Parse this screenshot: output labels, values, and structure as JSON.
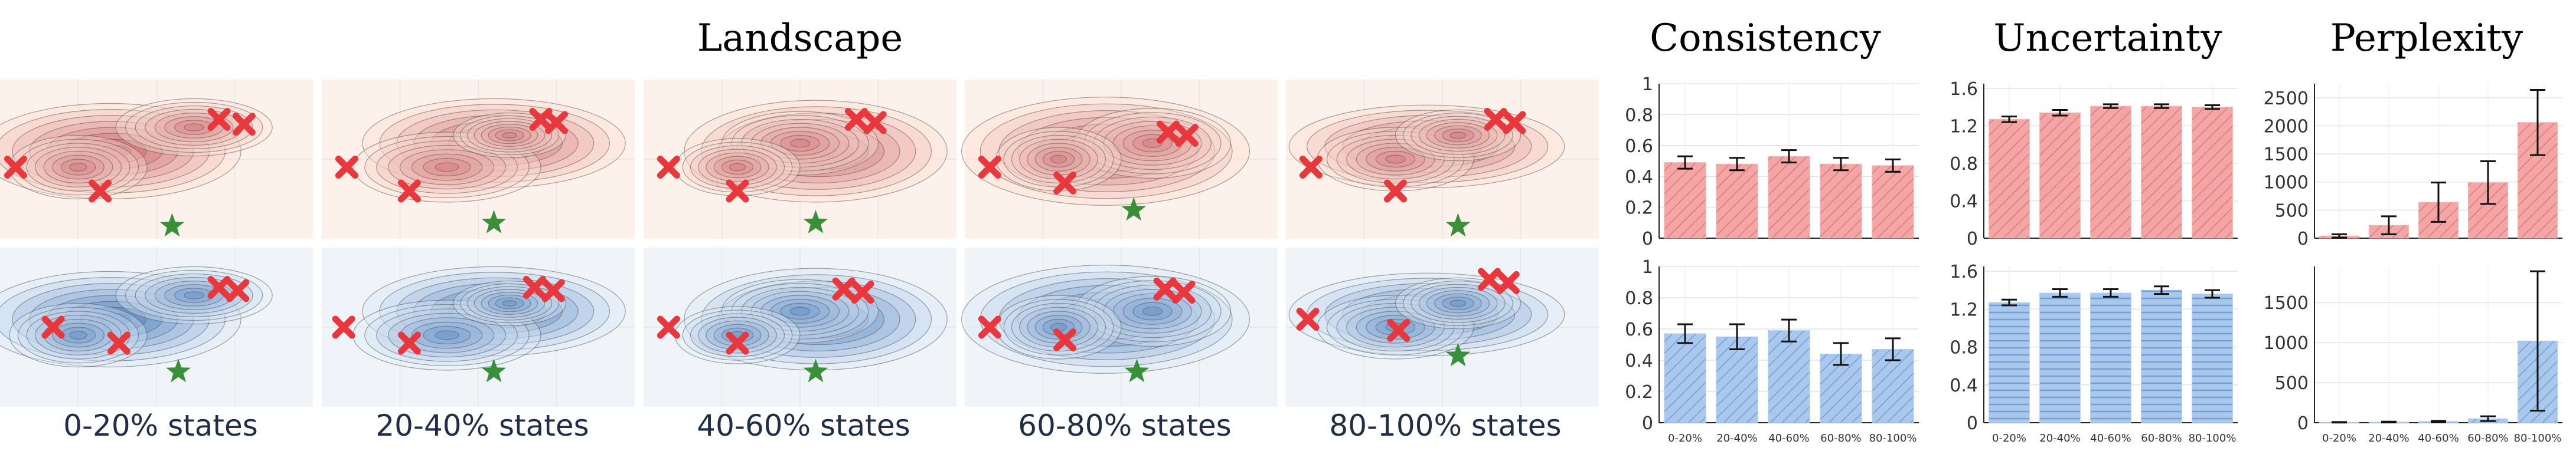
{
  "titles": {
    "landscape": "Landscape",
    "consistency": "Consistency",
    "uncertainty": "Uncertainty",
    "perplexity": "Perplexity"
  },
  "states": [
    "0-20% states",
    "20-40% states",
    "40-60% states",
    "60-80% states",
    "80-100% states"
  ],
  "colors": {
    "red_bg": "#fdf1ec",
    "blue_bg": "#f0f4f9",
    "red_bar": "#f4a6a6",
    "red_hatch": "#e07676",
    "blue_bar": "#a9c8ec",
    "blue_hatch": "#6f9fd6",
    "marker_x": "#e8383d",
    "marker_star": "#3a8f3a"
  },
  "chart_data": [
    {
      "id": "consistency-top",
      "type": "bar",
      "title": "Consistency",
      "color": "red",
      "categories": [
        "0-20%",
        "20-40%",
        "40-60%",
        "60-80%",
        "80-100%"
      ],
      "values": [
        0.49,
        0.48,
        0.53,
        0.48,
        0.47
      ],
      "errors": [
        0.04,
        0.04,
        0.04,
        0.04,
        0.04
      ],
      "ylim": [
        0,
        1
      ],
      "yticks": [
        0,
        0.2,
        0.4,
        0.6,
        0.8,
        1
      ],
      "ytick_labels": [
        "0",
        "0.2",
        "0.4",
        "0.6",
        "0.8",
        "1"
      ],
      "show_xticks": false
    },
    {
      "id": "uncertainty-top",
      "type": "bar",
      "title": "Uncertainty",
      "color": "red",
      "categories": [
        "0-20%",
        "20-40%",
        "40-60%",
        "60-80%",
        "80-100%"
      ],
      "values": [
        1.27,
        1.34,
        1.41,
        1.41,
        1.4
      ],
      "errors": [
        0.03,
        0.03,
        0.02,
        0.02,
        0.02
      ],
      "ylim": [
        0,
        1.65
      ],
      "yticks": [
        0,
        0.4,
        0.8,
        1.2,
        1.6
      ],
      "ytick_labels": [
        "0",
        "0.4",
        "0.8",
        "1.2",
        "1.6"
      ],
      "show_xticks": false
    },
    {
      "id": "perplexity-top",
      "type": "bar",
      "title": "Perplexity",
      "color": "red",
      "categories": [
        "0-20%",
        "20-40%",
        "40-60%",
        "60-80%",
        "80-100%"
      ],
      "values": [
        40,
        230,
        640,
        990,
        2060
      ],
      "errors": [
        30,
        160,
        350,
        380,
        580
      ],
      "ylim": [
        0,
        2750
      ],
      "yticks": [
        0,
        500,
        1000,
        1500,
        2000,
        2500
      ],
      "ytick_labels": [
        "0",
        "500",
        "1000",
        "1500",
        "2000",
        "2500"
      ],
      "show_xticks": false
    },
    {
      "id": "consistency-bottom",
      "type": "bar",
      "title": "",
      "color": "blue",
      "categories": [
        "0-20%",
        "20-40%",
        "40-60%",
        "60-80%",
        "80-100%"
      ],
      "values": [
        0.57,
        0.55,
        0.59,
        0.44,
        0.47
      ],
      "errors": [
        0.06,
        0.08,
        0.07,
        0.07,
        0.07
      ],
      "ylim": [
        0,
        1
      ],
      "yticks": [
        0,
        0.2,
        0.4,
        0.6,
        0.8,
        1
      ],
      "ytick_labels": [
        "0",
        "0.2",
        "0.4",
        "0.6",
        "0.8",
        "1"
      ],
      "show_xticks": true
    },
    {
      "id": "uncertainty-bottom",
      "type": "bar",
      "title": "",
      "color": "blue",
      "categories": [
        "0-20%",
        "20-40%",
        "40-60%",
        "60-80%",
        "80-100%"
      ],
      "values": [
        1.27,
        1.37,
        1.37,
        1.4,
        1.36
      ],
      "errors": [
        0.03,
        0.04,
        0.04,
        0.04,
        0.04
      ],
      "ylim": [
        0,
        1.65
      ],
      "yticks": [
        0,
        0.4,
        0.8,
        1.2,
        1.6
      ],
      "ytick_labels": [
        "0",
        "0.4",
        "0.8",
        "1.2",
        "1.6"
      ],
      "show_xticks": true
    },
    {
      "id": "perplexity-bottom",
      "type": "bar",
      "title": "",
      "color": "blue",
      "categories": [
        "0-20%",
        "20-40%",
        "40-60%",
        "60-80%",
        "80-100%"
      ],
      "values": [
        5,
        8,
        15,
        50,
        1020
      ],
      "errors": [
        3,
        5,
        8,
        30,
        870
      ],
      "ylim": [
        0,
        1950
      ],
      "yticks": [
        0,
        500,
        1000,
        1500
      ],
      "ytick_labels": [
        "0",
        "500",
        "1000",
        "1500"
      ],
      "show_xticks": true
    }
  ]
}
